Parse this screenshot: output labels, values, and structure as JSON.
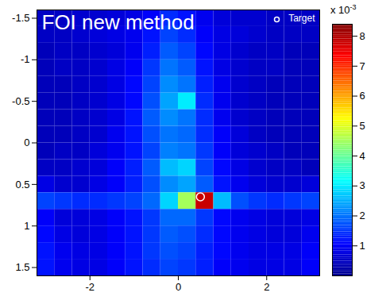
{
  "chart_data": {
    "type": "heatmap",
    "title": "FOI new method",
    "xlim": [
      -3.2,
      3.2
    ],
    "xticks": [
      -2,
      0,
      2
    ],
    "ylim": [
      -1.6,
      1.6
    ],
    "yticks": [
      -1.5,
      -1,
      -0.5,
      0,
      0.5,
      1,
      1.5
    ],
    "x": [
      -3.0,
      -2.6,
      -2.2,
      -1.8,
      -1.4,
      -1.0,
      -0.6,
      -0.2,
      0.2,
      0.6,
      1.0,
      1.4,
      1.8,
      2.2,
      2.6,
      3.0
    ],
    "y": [
      -1.5,
      -1.3,
      -1.1,
      -0.9,
      -0.7,
      -0.5,
      -0.3,
      -0.1,
      0.1,
      0.3,
      0.5,
      0.7,
      0.9,
      1.1,
      1.3,
      1.5
    ],
    "cells": [
      [
        0.5,
        0.5,
        0.6,
        0.6,
        0.7,
        0.8,
        1.0,
        1.4,
        1.2,
        0.9,
        0.7,
        0.6,
        0.6,
        0.5,
        0.5,
        0.5
      ],
      [
        0.5,
        0.5,
        0.6,
        0.7,
        0.8,
        0.9,
        1.2,
        1.6,
        1.4,
        1.0,
        0.8,
        0.7,
        0.6,
        0.5,
        0.5,
        0.5
      ],
      [
        0.4,
        0.5,
        0.5,
        0.6,
        0.7,
        0.9,
        1.3,
        1.8,
        1.6,
        1.1,
        0.8,
        0.6,
        0.5,
        0.5,
        0.4,
        0.4
      ],
      [
        0.4,
        0.5,
        0.5,
        0.6,
        0.8,
        1.0,
        1.5,
        2.0,
        1.8,
        1.2,
        0.8,
        0.6,
        0.5,
        0.5,
        0.4,
        0.4
      ],
      [
        0.4,
        0.4,
        0.5,
        0.6,
        0.8,
        1.1,
        1.6,
        2.2,
        2.0,
        1.3,
        0.9,
        0.6,
        0.5,
        0.4,
        0.4,
        0.4
      ],
      [
        0.4,
        0.4,
        0.5,
        0.6,
        0.8,
        1.1,
        1.7,
        2.4,
        3.0,
        1.4,
        0.9,
        0.6,
        0.5,
        0.4,
        0.4,
        0.4
      ],
      [
        0.4,
        0.4,
        0.5,
        0.6,
        0.8,
        1.2,
        1.8,
        2.2,
        2.0,
        1.4,
        0.9,
        0.6,
        0.5,
        0.4,
        0.4,
        0.4
      ],
      [
        0.4,
        0.4,
        0.5,
        0.6,
        0.9,
        1.2,
        1.7,
        2.0,
        1.9,
        1.4,
        1.0,
        0.7,
        0.5,
        0.4,
        0.4,
        0.4
      ],
      [
        0.4,
        0.5,
        0.5,
        0.7,
        0.9,
        1.2,
        1.6,
        2.1,
        2.0,
        1.5,
        1.0,
        0.7,
        0.6,
        0.5,
        0.4,
        0.4
      ],
      [
        0.5,
        0.5,
        0.6,
        0.7,
        1.0,
        1.3,
        1.8,
        2.6,
        2.8,
        1.6,
        1.1,
        0.8,
        0.6,
        0.5,
        0.5,
        0.4
      ],
      [
        0.8,
        0.6,
        0.6,
        0.8,
        1.0,
        1.3,
        1.7,
        2.2,
        2.4,
        1.8,
        1.2,
        0.9,
        0.7,
        0.6,
        0.6,
        0.7
      ],
      [
        1.6,
        1.5,
        1.4,
        1.4,
        1.5,
        1.6,
        1.9,
        2.8,
        4.5,
        7.8,
        2.6,
        1.7,
        1.5,
        1.4,
        1.5,
        1.6
      ],
      [
        1.0,
        0.7,
        0.7,
        0.8,
        1.0,
        1.2,
        1.5,
        1.9,
        1.9,
        1.5,
        1.1,
        0.9,
        0.8,
        0.7,
        0.7,
        0.8
      ],
      [
        1.1,
        0.8,
        0.7,
        0.8,
        1.0,
        1.2,
        1.5,
        1.8,
        1.7,
        1.4,
        1.1,
        0.9,
        0.8,
        0.7,
        0.7,
        0.9
      ],
      [
        1.2,
        0.9,
        0.8,
        0.8,
        1.0,
        1.2,
        1.5,
        1.7,
        1.6,
        1.3,
        1.1,
        0.9,
        0.8,
        0.8,
        0.8,
        1.0
      ],
      [
        1.2,
        0.9,
        0.8,
        0.8,
        1.0,
        1.2,
        1.4,
        1.6,
        1.5,
        1.3,
        1.0,
        0.9,
        0.8,
        0.8,
        0.8,
        1.0
      ]
    ],
    "target": {
      "name": "Target",
      "x": 0.5,
      "y": 0.65,
      "marker": "circle"
    },
    "legend": "top-right",
    "colorbar": {
      "range": [
        0,
        8.4
      ],
      "ticks": [
        1,
        2,
        3,
        4,
        5,
        6,
        7,
        8
      ],
      "label": "x 10",
      "exponent": "-3"
    }
  }
}
